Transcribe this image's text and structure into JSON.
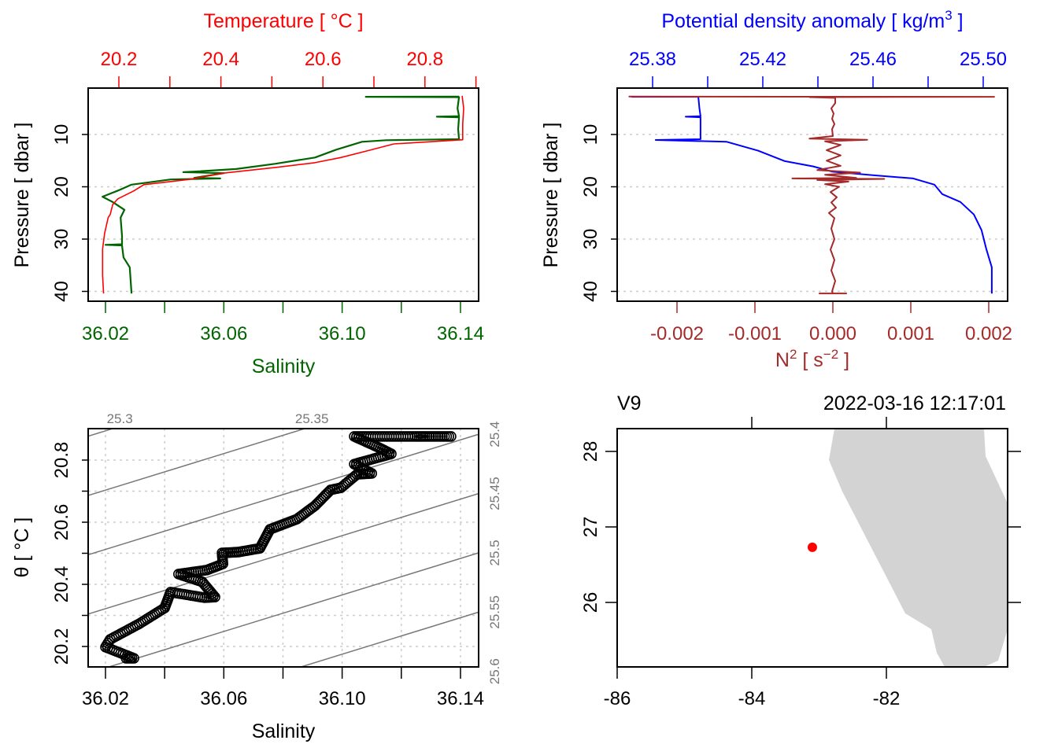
{
  "colors": {
    "temperature": "#ff0000",
    "salinity": "#006400",
    "density": "#0000ff",
    "n2": "#a52a2a",
    "isopycnal": "#777777",
    "land": "#d3d3d3",
    "station": "#ff0000",
    "grid": "#cccccc"
  },
  "chart_data": [
    {
      "type": "line",
      "panel": "temperature-salinity-profile",
      "top_axis": {
        "label": "Temperature [ °C ]",
        "ticks": [
          20.2,
          20.3,
          20.4,
          20.5,
          20.6,
          20.7,
          20.8,
          20.9
        ],
        "tick_labels": [
          {
            "v": 20.2,
            "t": "20.2"
          },
          {
            "v": 20.4,
            "t": "20.4"
          },
          {
            "v": 20.6,
            "t": "20.6"
          },
          {
            "v": 20.8,
            "t": "20.8"
          }
        ]
      },
      "bottom_axis": {
        "label": "Salinity",
        "ticks": [
          36.02,
          36.04,
          36.06,
          36.08,
          36.1,
          36.12,
          36.14
        ],
        "tick_labels": [
          {
            "v": 36.02,
            "t": "36.02"
          },
          {
            "v": 36.06,
            "t": "36.06"
          },
          {
            "v": 36.1,
            "t": "36.10"
          },
          {
            "v": 36.14,
            "t": "36.14"
          }
        ]
      },
      "y_axis": {
        "label": "Pressure [ dbar ]",
        "reversed": true,
        "ticks": [
          10,
          20,
          30,
          40
        ],
        "tick_labels": [
          "10",
          "20",
          "30",
          "40"
        ]
      },
      "grid": true,
      "series": [
        {
          "name": "Temperature",
          "pressure": [
            2.6,
            5,
            8,
            11,
            11.8,
            13.1,
            14.4,
            15.4,
            16.3,
            17.4,
            18.6,
            19.6,
            20.8,
            22.3,
            23.4,
            25.3,
            25.9,
            28.9,
            31.9,
            36.9,
            40.4
          ],
          "values": [
            20.873,
            20.876,
            20.874,
            20.874,
            20.739,
            20.688,
            20.635,
            20.584,
            20.507,
            20.404,
            20.337,
            20.249,
            20.229,
            20.198,
            20.188,
            20.183,
            20.179,
            20.172,
            20.168,
            20.168,
            20.17
          ]
        },
        {
          "name": "Salinity",
          "pressure": [
            2.75,
            2.8,
            2.85,
            5,
            6.5,
            6.6,
            6.7,
            9,
            10.9,
            11.1,
            11.4,
            12.9,
            14.4,
            15.6,
            16.6,
            17.1,
            17.2,
            17.4,
            18.3,
            18.4,
            18.6,
            19.6,
            20.7,
            21.9,
            22.9,
            24.4,
            25.9,
            29.4,
            31,
            31.1,
            31.2,
            33.5,
            35.4,
            40.4
          ],
          "values": [
            36.1395,
            36.108,
            36.1395,
            36.139,
            36.1395,
            36.132,
            36.1395,
            36.1392,
            36.1395,
            36.1147,
            36.1067,
            36.098,
            36.0908,
            36.0775,
            36.0642,
            36.05,
            36.0463,
            36.06,
            36.05,
            36.0588,
            36.042,
            36.0288,
            36.0243,
            36.019,
            36.0224,
            36.0264,
            36.0251,
            36.0256,
            36.0256,
            36.02,
            36.0256,
            36.0261,
            36.0282,
            36.0288
          ]
        }
      ]
    },
    {
      "type": "line",
      "panel": "density-n2-profile",
      "top_axis": {
        "label": "Potential density anomaly [ kg/m",
        "label_sup": "3",
        "label_end": " ]",
        "ticks": [
          25.38,
          25.4,
          25.42,
          25.44,
          25.46,
          25.48,
          25.5
        ],
        "tick_labels": [
          {
            "v": 25.38,
            "t": "25.38"
          },
          {
            "v": 25.42,
            "t": "25.42"
          },
          {
            "v": 25.46,
            "t": "25.46"
          },
          {
            "v": 25.5,
            "t": "25.50"
          }
        ]
      },
      "bottom_axis": {
        "label": "N",
        "label_sup": "2",
        "label_mid": " [ s",
        "label_sup2": "−2",
        "label_end": " ]",
        "ticks": [
          -0.002,
          -0.001,
          0,
          0.001,
          0.002
        ],
        "tick_labels": [
          {
            "v": -0.002,
            "t": "-0.002"
          },
          {
            "v": -0.001,
            "t": "-0.001"
          },
          {
            "v": 0,
            "t": "0.000"
          },
          {
            "v": 0.001,
            "t": "0.001"
          },
          {
            "v": 0.002,
            "t": "0.002"
          }
        ]
      },
      "y_axis": {
        "label": "Pressure [ dbar ]",
        "reversed": true,
        "ticks": [
          10,
          20,
          30,
          40
        ],
        "tick_labels": [
          "10",
          "20",
          "30",
          "40"
        ]
      },
      "grid": true,
      "series": [
        {
          "name": "Potential density anomaly",
          "pressure": [
            2.8,
            2.8,
            5,
            6.5,
            6.6,
            6.7,
            10.9,
            11.05,
            11.4,
            13.1,
            15.1,
            16.1,
            17.1,
            17.8,
            18.4,
            19.6,
            21.4,
            22.9,
            25.3,
            28.3,
            31.9,
            35.4,
            40.4
          ],
          "values": [
            25.3723,
            25.3966,
            25.397,
            25.3974,
            25.392,
            25.3974,
            25.3974,
            25.3811,
            25.4069,
            25.4183,
            25.428,
            25.4383,
            25.4451,
            25.4603,
            25.4746,
            25.4823,
            25.4851,
            25.4917,
            25.4966,
            25.4994,
            25.5011,
            25.5031,
            25.5031
          ]
        },
        {
          "name": "N2",
          "pressure": [
            2.75,
            2.8,
            2.85,
            3.0,
            4,
            5,
            6,
            7,
            8,
            9,
            10.3,
            10.8,
            11.0,
            11.3,
            12,
            13,
            14,
            15,
            16,
            16.8,
            17.3,
            17.7,
            18.3,
            18.4,
            18.5,
            18.7,
            19,
            19.5,
            20,
            21,
            22,
            23,
            24,
            25,
            26,
            28,
            30,
            32,
            34,
            36,
            38,
            40,
            40.4
          ],
          "values": [
            -0.00262,
            0.00207,
            -0.0003,
            3e-05,
            3e-05,
            -2e-05,
            1e-05,
            -1e-05,
            2e-05,
            -1e-05,
            0.0,
            -0.0003,
            0.00044,
            -0.0001,
            0.0001,
            -8e-05,
            0.0001,
            -8e-05,
            0.0001,
            -0.0002,
            0.00035,
            -0.0001,
            0.0003,
            -0.00052,
            0.00066,
            -0.0002,
            0.0002,
            -0.0001,
            8e-05,
            -3e-05,
            5e-05,
            -2e-05,
            4e-05,
            -5e-05,
            2e-05,
            -2e-05,
            2e-05,
            -3e-05,
            2e-05,
            -2e-05,
            3e-05,
            -1e-05,
            0.0
          ]
        }
      ]
    },
    {
      "type": "scatter",
      "panel": "ts-diagram",
      "x_axis": {
        "label": "Salinity",
        "ticks": [
          36.02,
          36.04,
          36.06,
          36.08,
          36.1,
          36.12,
          36.14
        ],
        "tick_labels": [
          {
            "v": 36.02,
            "t": "36.02"
          },
          {
            "v": 36.06,
            "t": "36.06"
          },
          {
            "v": 36.1,
            "t": "36.10"
          },
          {
            "v": 36.14,
            "t": "36.14"
          }
        ]
      },
      "y_axis": {
        "label": "θ [ °C ]",
        "ticks": [
          20.2,
          20.3,
          20.4,
          20.5,
          20.6,
          20.7,
          20.8
        ],
        "tick_labels": [
          {
            "v": 20.2,
            "t": "20.2"
          },
          {
            "v": 20.4,
            "t": "20.4"
          },
          {
            "v": 20.6,
            "t": "20.6"
          },
          {
            "v": 20.8,
            "t": "20.8"
          }
        ]
      },
      "grid": true,
      "isopycnals": [
        {
          "v": 25.3,
          "t": "25.3"
        },
        {
          "v": 25.35,
          "t": "25.35"
        },
        {
          "v": 25.4,
          "t": "25.4"
        },
        {
          "v": 25.45,
          "t": "25.45"
        },
        {
          "v": 25.5,
          "t": "25.5"
        },
        {
          "v": 25.55,
          "t": "25.55"
        },
        {
          "v": 25.6,
          "t": "25.6"
        }
      ],
      "path_points": [
        [
          36.027,
          20.162
        ],
        [
          36.0296,
          20.162
        ],
        [
          36.02,
          20.198
        ],
        [
          36.0216,
          20.223
        ],
        [
          36.0314,
          20.273
        ],
        [
          36.04,
          20.324
        ],
        [
          36.042,
          20.375
        ],
        [
          36.0535,
          20.357
        ],
        [
          36.057,
          20.359
        ],
        [
          36.0527,
          20.408
        ],
        [
          36.0447,
          20.433
        ],
        [
          36.0543,
          20.446
        ],
        [
          36.0597,
          20.466
        ],
        [
          36.0594,
          20.501
        ],
        [
          36.065,
          20.504
        ],
        [
          36.0722,
          20.516
        ],
        [
          36.0756,
          20.577
        ],
        [
          36.0847,
          20.61
        ],
        [
          36.0908,
          20.653
        ],
        [
          36.0961,
          20.704
        ],
        [
          36.0996,
          20.711
        ],
        [
          36.105,
          20.754
        ],
        [
          36.11,
          20.757
        ],
        [
          36.1041,
          20.787
        ],
        [
          36.1166,
          20.82
        ],
        [
          36.1129,
          20.838
        ],
        [
          36.1041,
          20.876
        ],
        [
          36.1246,
          20.876
        ],
        [
          36.128,
          20.876
        ],
        [
          36.1368,
          20.876
        ]
      ]
    },
    {
      "type": "map",
      "panel": "station-map",
      "station_name": "V9",
      "datetime": "2022-03-16 12:17:01",
      "x_axis": {
        "ticks": [
          -86,
          -84,
          -82
        ],
        "tick_labels": [
          "-86",
          "-84",
          "-82"
        ]
      },
      "y_axis": {
        "ticks": [
          26,
          27,
          28
        ],
        "tick_labels": [
          "26",
          "27",
          "28"
        ]
      },
      "station": {
        "lon": -83.1,
        "lat": 26.73
      },
      "land": [
        [
          -82.772,
          28.302
        ],
        [
          -80.55,
          28.302
        ],
        [
          -80.526,
          27.9375
        ],
        [
          -80.199,
          27.3125
        ],
        [
          -80.199,
          25.646
        ],
        [
          -80.339,
          25.229
        ],
        [
          -80.55,
          25.146
        ],
        [
          -81.135,
          25.146
        ],
        [
          -81.251,
          25.333
        ],
        [
          -81.333,
          25.646
        ],
        [
          -81.719,
          25.854
        ],
        [
          -82.655,
          27.469
        ],
        [
          -82.854,
          27.885
        ]
      ]
    }
  ]
}
